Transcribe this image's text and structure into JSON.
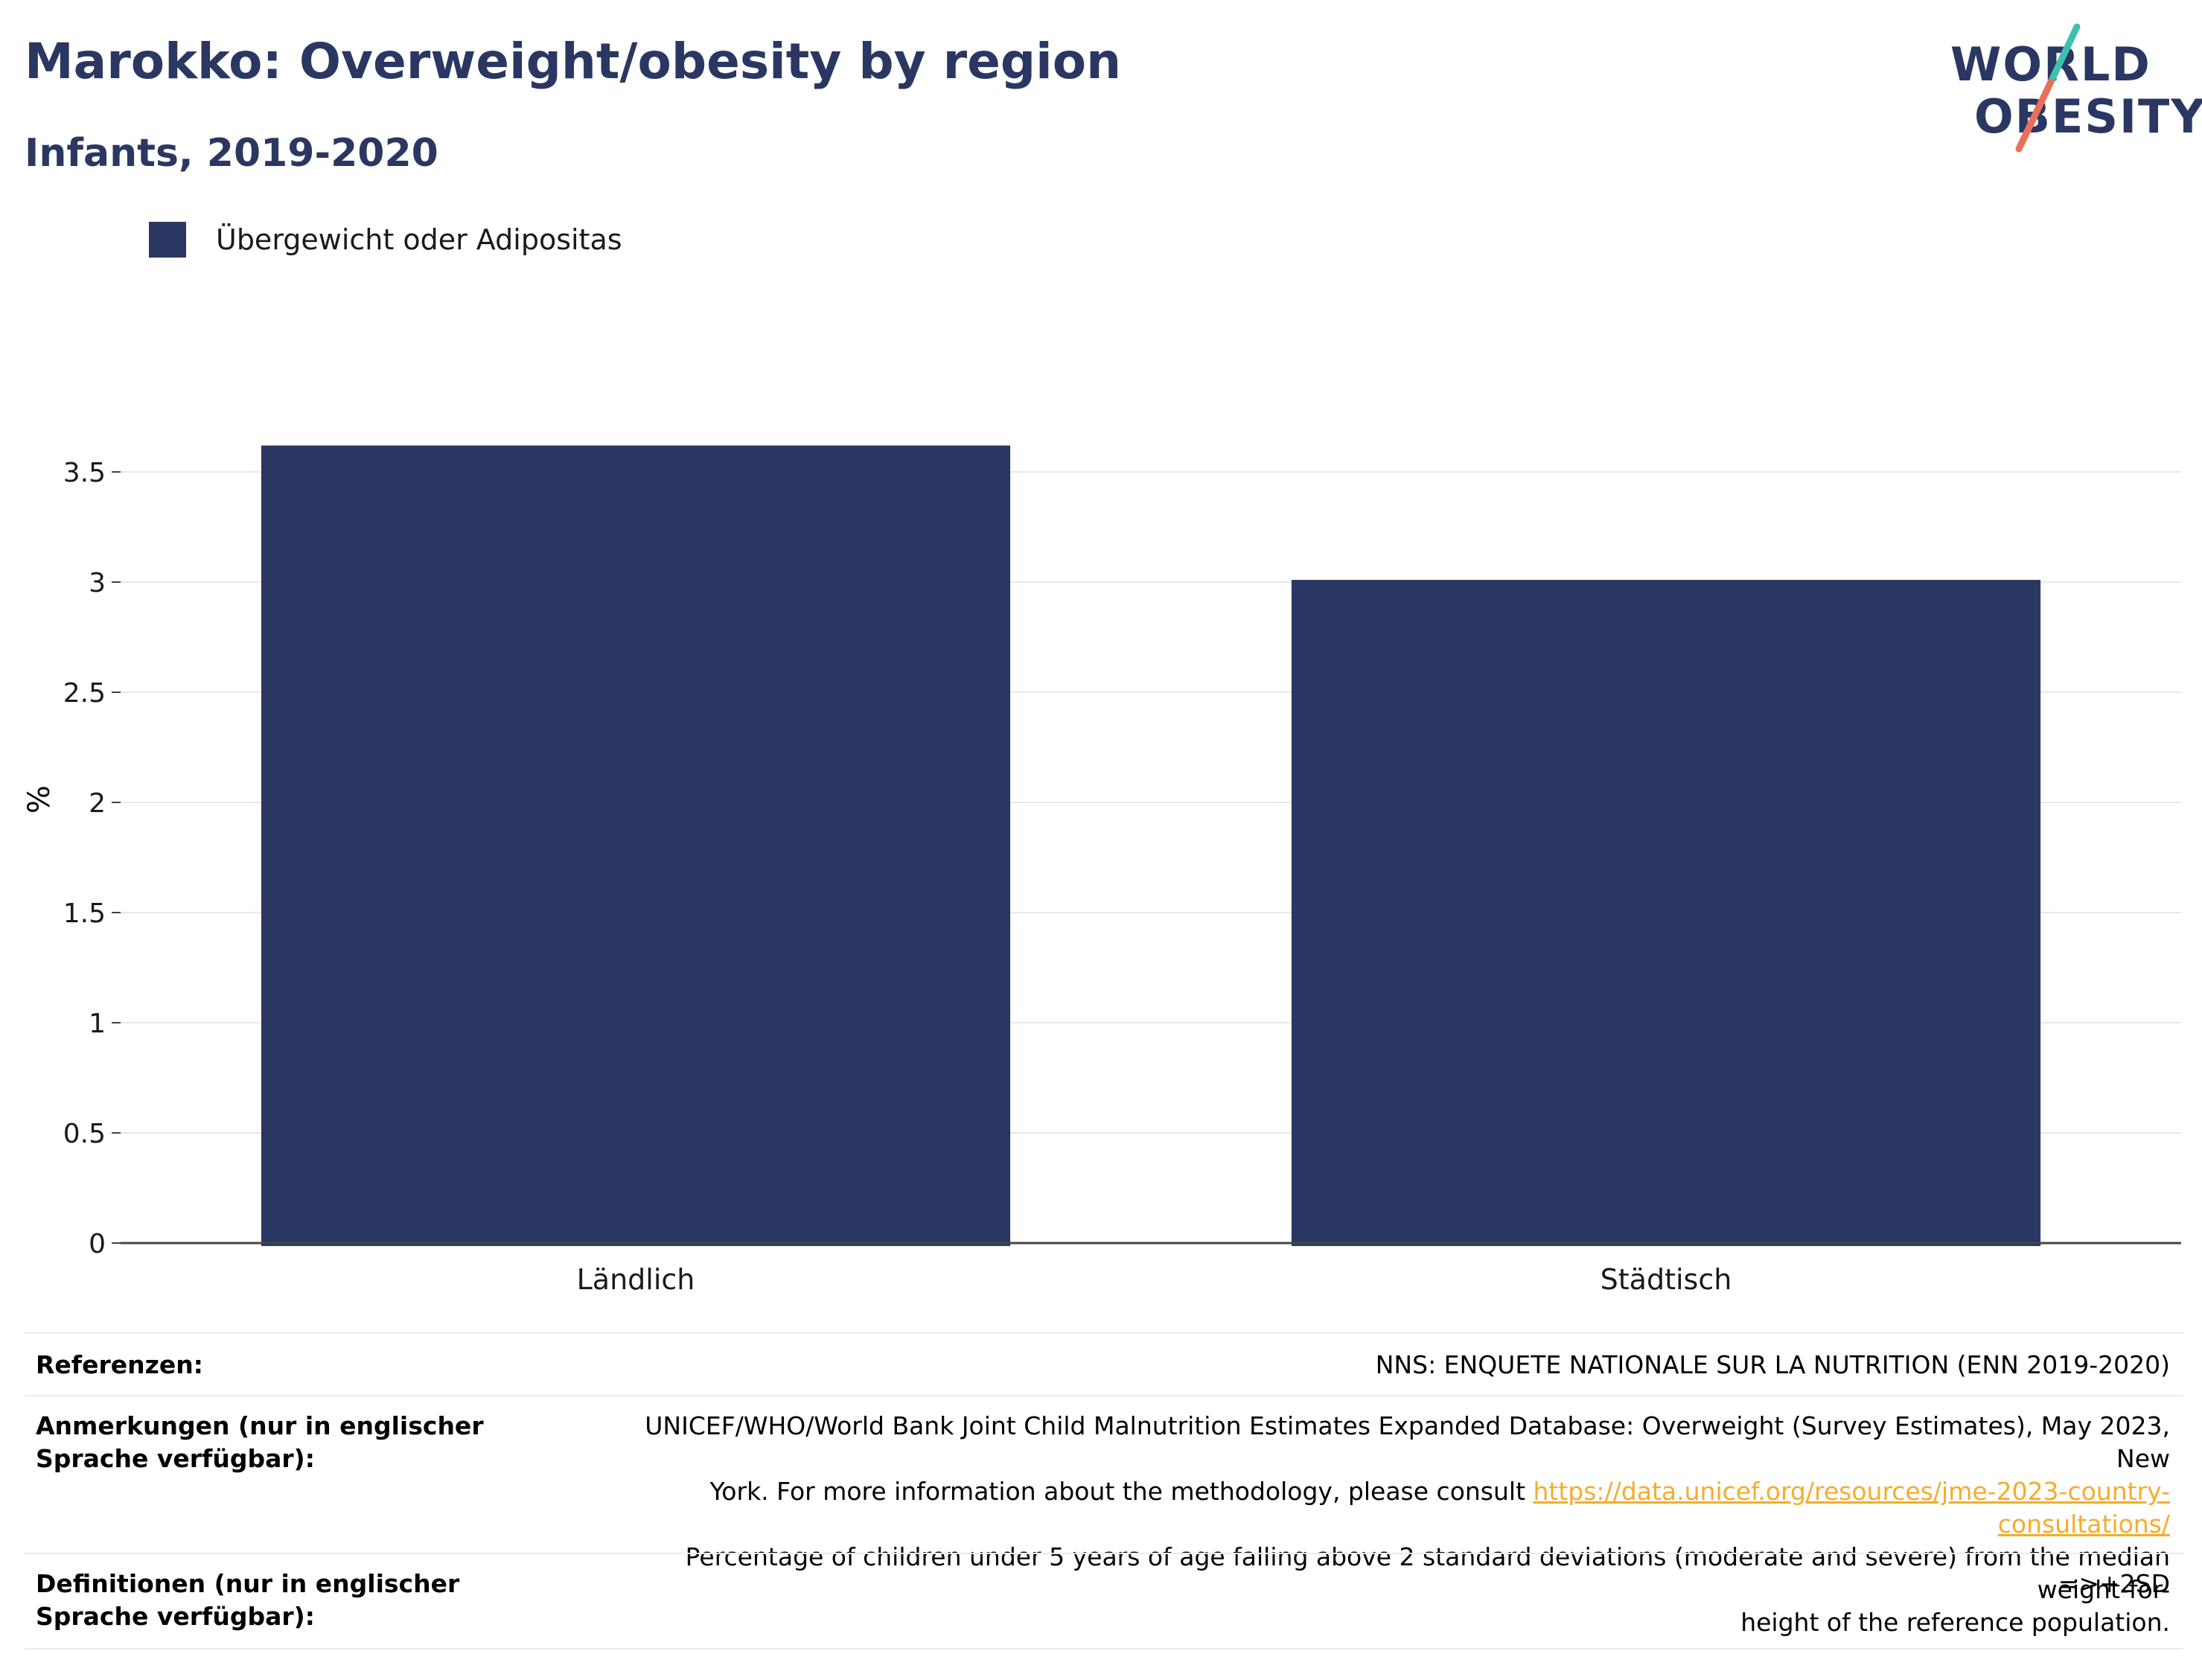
{
  "header": {
    "title": "Marokko: Overweight/obesity by region",
    "subtitle": "Infants, 2019-2020"
  },
  "logo": {
    "line1": "WORLD",
    "line2": "OBESITY",
    "colors": {
      "text": "#2a3762",
      "slash_top": "#3fbfae",
      "slash_bottom": "#e8705a"
    }
  },
  "chart_data": {
    "type": "bar",
    "categories": [
      "Ländlich",
      "Städtisch"
    ],
    "series": [
      {
        "name": "Übergewicht oder Adipositas",
        "values": [
          3.62,
          3.01
        ],
        "color": "#2a3762"
      }
    ],
    "ylabel": "%",
    "ylim": [
      0,
      3.75
    ],
    "yticks": [
      0,
      0.5,
      1,
      1.5,
      2,
      2.5,
      3,
      3.5
    ],
    "ytick_labels": [
      "0",
      "0.5",
      "1",
      "1.5",
      "2",
      "2.5",
      "3",
      "3.5"
    ],
    "grid": true,
    "legend_position": "top-left"
  },
  "references": [
    {
      "label": "Referenzen:",
      "value": "NNS: ENQUETE NATIONALE SUR LA NUTRITION (ENN 2019-2020)"
    },
    {
      "label": "Anmerkungen (nur in englischer Sprache verfügbar):",
      "value_line1": "UNICEF/WHO/World Bank Joint Child Malnutrition Estimates Expanded Database: Overweight (Survey Estimates), May 2023, New",
      "value_line2_prefix": "York. For more information about the methodology, please consult ",
      "link": "https://data.unicef.org/resources/jme-2023-country-consultations/",
      "value_line3": "Percentage of children under 5 years of age falling above 2 standard deviations (moderate and severe) from the median weight-for-",
      "value_line4": "height of the reference population."
    },
    {
      "label": "Definitionen (nur in englischer Sprache verfügbar):",
      "value": "=>+2SD"
    }
  ]
}
